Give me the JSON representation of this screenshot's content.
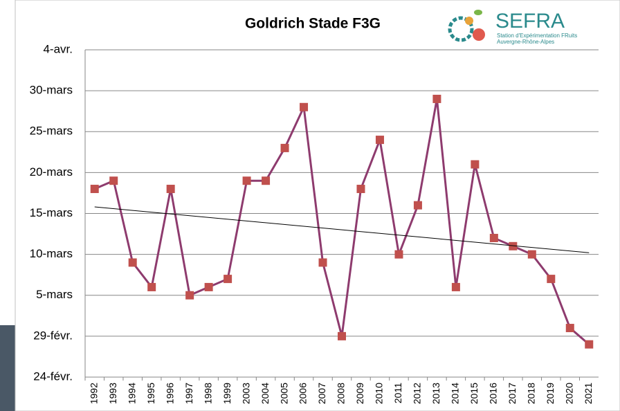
{
  "chart_data": {
    "type": "line",
    "title": "Goldrich Stade F3G",
    "logo": {
      "name": "SEFRA",
      "line1": "Station d'Expérimentation FRuits",
      "line2": "Auvergne-Rhône-Alpes"
    },
    "categories": [
      "1992",
      "1993",
      "1994",
      "1995",
      "1996",
      "1997",
      "1998",
      "1999",
      "2003",
      "2004",
      "2005",
      "2006",
      "2007",
      "2008",
      "2009",
      "2010",
      "2011",
      "2012",
      "2013",
      "2014",
      "2015",
      "2016",
      "2017",
      "2018",
      "2019",
      "2020",
      "2021"
    ],
    "series": [
      {
        "color": "#8e3b6e",
        "marker_color": "#c0504d",
        "values": [
          78,
          79,
          69,
          66,
          78,
          65,
          66,
          67,
          79,
          79,
          83,
          88,
          69,
          60,
          78,
          84,
          70,
          76,
          89,
          66,
          81,
          72,
          71,
          70,
          67,
          61,
          59
        ]
      }
    ],
    "trendline": {
      "color": "#000000",
      "values": [
        75.8,
        70.2
      ]
    },
    "ylim": [
      55,
      95
    ],
    "yticks": [
      {
        "value": 55,
        "label": "24-févr."
      },
      {
        "value": 60,
        "label": "29-févr."
      },
      {
        "value": 65,
        "label": "5-mars"
      },
      {
        "value": 70,
        "label": "10-mars"
      },
      {
        "value": 75,
        "label": "15-mars"
      },
      {
        "value": 80,
        "label": "20-mars"
      },
      {
        "value": 85,
        "label": "25-mars"
      },
      {
        "value": 90,
        "label": "30-mars"
      },
      {
        "value": 95,
        "label": "4-avr."
      }
    ],
    "grid": true
  }
}
